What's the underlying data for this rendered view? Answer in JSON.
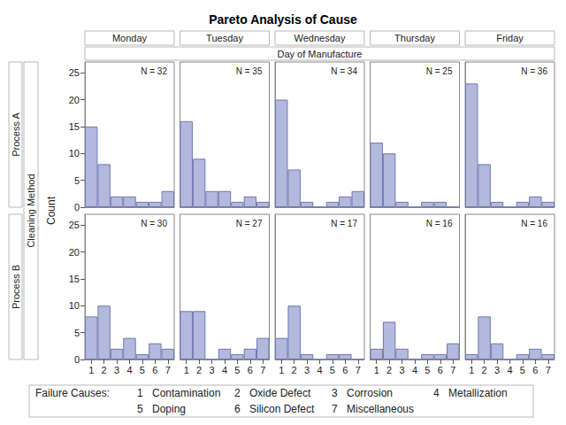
{
  "chart_data": {
    "type": "bar",
    "title": "Pareto Analysis of Cause",
    "column_title": "Day of Manufacture",
    "row_title": "Cleaning Method",
    "y_label": "Count",
    "categories": [
      "1",
      "2",
      "3",
      "4",
      "5",
      "6",
      "7"
    ],
    "columns": [
      "Monday",
      "Tuesday",
      "Wednesday",
      "Thursday",
      "Friday"
    ],
    "rows": [
      "Process A",
      "Process B"
    ],
    "color": "#b3b9dc",
    "ylim": [
      0,
      27
    ],
    "yticks": [
      0,
      5,
      10,
      15,
      20,
      25
    ],
    "grid": false,
    "panels": [
      {
        "row": "Process A",
        "column": "Monday",
        "n_label": "N = 32",
        "values": [
          15,
          8,
          2,
          2,
          1,
          1,
          3
        ]
      },
      {
        "row": "Process A",
        "column": "Tuesday",
        "n_label": "N = 35",
        "values": [
          16,
          9,
          3,
          3,
          1,
          2,
          1
        ]
      },
      {
        "row": "Process A",
        "column": "Wednesday",
        "n_label": "N = 34",
        "values": [
          20,
          7,
          1,
          0,
          1,
          2,
          3
        ]
      },
      {
        "row": "Process A",
        "column": "Thursday",
        "n_label": "N = 25",
        "values": [
          12,
          10,
          1,
          0,
          1,
          1,
          0
        ]
      },
      {
        "row": "Process A",
        "column": "Friday",
        "n_label": "N = 36",
        "values": [
          23,
          8,
          1,
          0,
          1,
          2,
          1
        ]
      },
      {
        "row": "Process B",
        "column": "Monday",
        "n_label": "N = 30",
        "values": [
          8,
          10,
          2,
          4,
          1,
          3,
          2
        ]
      },
      {
        "row": "Process B",
        "column": "Tuesday",
        "n_label": "N = 27",
        "values": [
          9,
          9,
          0,
          2,
          1,
          2,
          4
        ]
      },
      {
        "row": "Process B",
        "column": "Wednesday",
        "n_label": "N = 17",
        "values": [
          4,
          10,
          1,
          0,
          1,
          1,
          0
        ]
      },
      {
        "row": "Process B",
        "column": "Thursday",
        "n_label": "N = 16",
        "values": [
          2,
          7,
          2,
          0,
          1,
          1,
          3
        ]
      },
      {
        "row": "Process B",
        "column": "Friday",
        "n_label": "N = 16",
        "values": [
          1,
          8,
          3,
          0,
          1,
          2,
          1
        ]
      }
    ],
    "cause_key": {
      "title": "Failure Causes:",
      "items": [
        {
          "code": "1",
          "name": "Contamination"
        },
        {
          "code": "2",
          "name": "Oxide Defect"
        },
        {
          "code": "3",
          "name": "Corrosion"
        },
        {
          "code": "4",
          "name": "Metallization"
        },
        {
          "code": "5",
          "name": "Doping"
        },
        {
          "code": "6",
          "name": "Silicon Defect"
        },
        {
          "code": "7",
          "name": "Miscellaneous"
        }
      ]
    }
  }
}
